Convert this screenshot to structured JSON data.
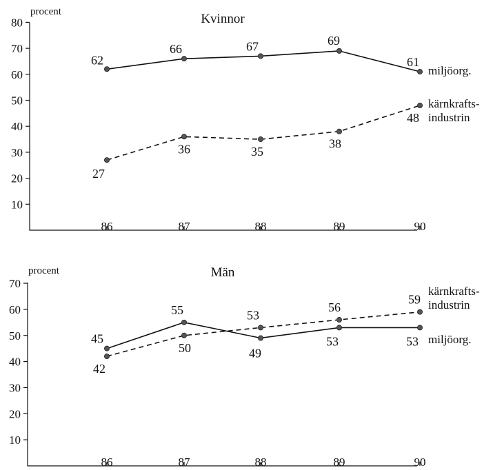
{
  "chart_data": [
    {
      "type": "line",
      "title": "Kvinnor",
      "ylabel": "procent",
      "xlabel": "",
      "ylim": [
        0,
        80
      ],
      "yticks": [
        10,
        20,
        30,
        40,
        50,
        60,
        70,
        80
      ],
      "x": [
        "86",
        "87",
        "88",
        "89",
        "90"
      ],
      "grid": false,
      "series": [
        {
          "name": "miljöorg.",
          "line_style": "solid",
          "values": [
            62,
            66,
            67,
            69,
            61
          ],
          "data_labels": [
            "62",
            "66",
            "67",
            "69",
            "61"
          ]
        },
        {
          "name": "kärnkrafts-industrin",
          "name_lines": [
            "kärnkrafts-",
            "industrin"
          ],
          "line_style": "dashed",
          "values": [
            27,
            36,
            35,
            38,
            48
          ],
          "data_labels": [
            "27",
            "36",
            "35",
            "38",
            "48"
          ]
        }
      ]
    },
    {
      "type": "line",
      "title": "Män",
      "ylabel": "procent",
      "xlabel": "",
      "ylim": [
        0,
        70
      ],
      "yticks": [
        10,
        20,
        30,
        40,
        50,
        60,
        70
      ],
      "x": [
        "86",
        "87",
        "88",
        "89",
        "90"
      ],
      "grid": false,
      "series": [
        {
          "name": "miljöorg.",
          "line_style": "solid",
          "values": [
            45,
            55,
            49,
            53,
            53
          ],
          "data_labels": [
            "45",
            "55",
            "49",
            "53",
            "53"
          ]
        },
        {
          "name": "kärnkrafts-industrin",
          "name_lines": [
            "kärnkrafts-",
            "industrin"
          ],
          "line_style": "dashed",
          "values": [
            42,
            50,
            53,
            56,
            59
          ],
          "data_labels": [
            "42",
            "50",
            "53",
            "56",
            "59"
          ]
        }
      ]
    }
  ]
}
